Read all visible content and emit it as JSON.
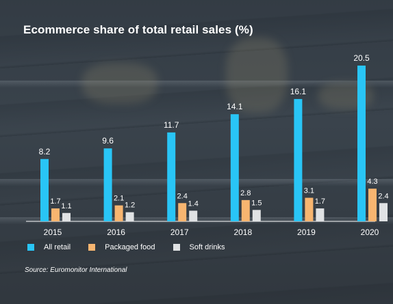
{
  "title": "Ecommerce share of total retail sales (%)",
  "source": "Source: Euromonitor International",
  "colors": {
    "all_retail": "#29c5f6",
    "packaged_food": "#f7b570",
    "soft_drinks": "#e0e2e4",
    "axis": "#ffffff"
  },
  "chart_data": {
    "type": "bar",
    "categories": [
      "2015",
      "2016",
      "2017",
      "2018",
      "2019",
      "2020"
    ],
    "series": [
      {
        "name": "All retail",
        "values": [
          8.2,
          9.6,
          11.7,
          14.1,
          16.1,
          20.5
        ]
      },
      {
        "name": "Packaged food",
        "values": [
          1.7,
          2.1,
          2.4,
          2.8,
          3.1,
          4.3
        ]
      },
      {
        "name": "Soft drinks",
        "values": [
          1.1,
          1.2,
          1.4,
          1.5,
          1.7,
          2.4
        ]
      }
    ],
    "ylim": [
      0,
      20.5
    ],
    "grid": false,
    "legend": "bottom-left"
  },
  "legend": [
    {
      "label": "All retail",
      "icon": "cyan-square-icon"
    },
    {
      "label": "Packaged food",
      "icon": "orange-square-icon"
    },
    {
      "label": "Soft drinks",
      "icon": "grey-square-icon"
    }
  ]
}
